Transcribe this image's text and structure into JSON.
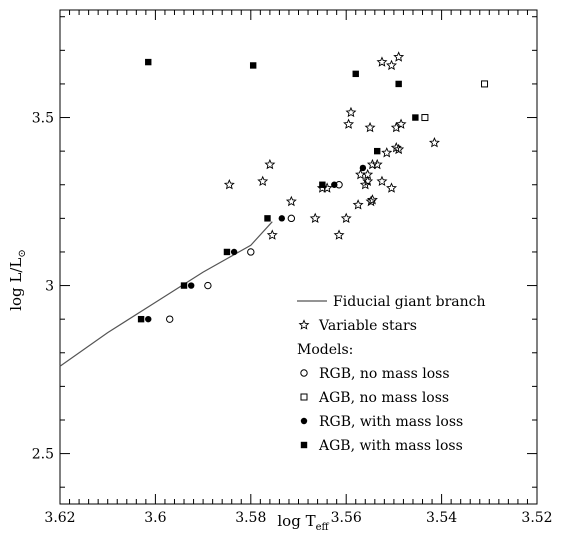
{
  "chart_data": {
    "type": "scatter",
    "x_axis": {
      "label_main": "log T",
      "label_sub": "eff",
      "range": [
        3.62,
        3.52
      ],
      "reversed": true,
      "ticks": [
        3.62,
        3.6,
        3.58,
        3.56,
        3.54,
        3.52
      ],
      "tick_labels": [
        "3.62",
        "3.6",
        "3.58",
        "3.56",
        "3.54",
        "3.52"
      ]
    },
    "y_axis": {
      "label_main": "log L/L",
      "label_sub": "⊙",
      "range": [
        2.35,
        3.82
      ],
      "ticks": [
        2.5,
        3.0,
        3.5
      ],
      "tick_labels": [
        "2.5",
        "3",
        "3.5"
      ]
    },
    "grid": false,
    "legend_placement": "bottom-right",
    "legend": {
      "items": [
        {
          "marker": "line",
          "label": "Fiducial giant branch"
        },
        {
          "marker": "star",
          "label": "Variable stars"
        },
        {
          "marker": "none",
          "label": "Models:"
        },
        {
          "marker": "open-circle",
          "label": "RGB, no mass loss"
        },
        {
          "marker": "open-square",
          "label": "AGB, no mass loss"
        },
        {
          "marker": "filled-circle",
          "label": "RGB, with mass loss"
        },
        {
          "marker": "filled-square",
          "label": "AGB, with mass loss"
        }
      ]
    },
    "series": [
      {
        "name": "Fiducial giant branch",
        "style": "line",
        "color": "#555555",
        "points": [
          [
            3.62,
            2.76
          ],
          [
            3.61,
            2.86
          ],
          [
            3.6,
            2.95
          ],
          [
            3.59,
            3.04
          ],
          [
            3.58,
            3.12
          ],
          [
            3.5755,
            3.19
          ]
        ]
      },
      {
        "name": "Variable stars",
        "style": "star",
        "points": [
          [
            3.5845,
            3.3
          ],
          [
            3.5775,
            3.31
          ],
          [
            3.576,
            3.36
          ],
          [
            3.5755,
            3.15
          ],
          [
            3.5715,
            3.25
          ],
          [
            3.5665,
            3.2
          ],
          [
            3.565,
            3.29
          ],
          [
            3.564,
            3.29
          ],
          [
            3.5615,
            3.15
          ],
          [
            3.56,
            3.2
          ],
          [
            3.5595,
            3.48
          ],
          [
            3.559,
            3.515
          ],
          [
            3.5575,
            3.24
          ],
          [
            3.557,
            3.33
          ],
          [
            3.556,
            3.3
          ],
          [
            3.5555,
            3.31
          ],
          [
            3.555,
            3.47
          ],
          [
            3.5548,
            3.25
          ],
          [
            3.5545,
            3.255
          ],
          [
            3.5535,
            3.36
          ],
          [
            3.5525,
            3.31
          ],
          [
            3.5515,
            3.395
          ],
          [
            3.5505,
            3.29
          ],
          [
            3.5495,
            3.41
          ],
          [
            3.549,
            3.405
          ],
          [
            3.5525,
            3.665
          ],
          [
            3.5505,
            3.655
          ],
          [
            3.549,
            3.68
          ],
          [
            3.5495,
            3.47
          ],
          [
            3.5485,
            3.48
          ],
          [
            3.5415,
            3.425
          ],
          [
            3.5545,
            3.36
          ],
          [
            3.5555,
            3.33
          ]
        ]
      },
      {
        "name": "RGB, no mass loss",
        "style": "open-circle",
        "points": [
          [
            3.597,
            2.9
          ],
          [
            3.589,
            3.0
          ],
          [
            3.58,
            3.1
          ],
          [
            3.5715,
            3.2
          ],
          [
            3.5615,
            3.3
          ]
        ]
      },
      {
        "name": "AGB, no mass loss",
        "style": "open-square",
        "points": [
          [
            3.531,
            3.6
          ],
          [
            3.5435,
            3.5
          ]
        ]
      },
      {
        "name": "RGB, with mass loss",
        "style": "filled-circle",
        "points": [
          [
            3.6015,
            2.9
          ],
          [
            3.5925,
            3.0
          ],
          [
            3.5835,
            3.1
          ],
          [
            3.5735,
            3.2
          ],
          [
            3.5625,
            3.3
          ],
          [
            3.5565,
            3.35
          ]
        ]
      },
      {
        "name": "AGB, with mass loss",
        "style": "filled-square",
        "points": [
          [
            3.603,
            2.9
          ],
          [
            3.594,
            3.0
          ],
          [
            3.585,
            3.1
          ],
          [
            3.5765,
            3.2
          ],
          [
            3.565,
            3.3
          ],
          [
            3.5535,
            3.4
          ],
          [
            3.5455,
            3.5
          ],
          [
            3.549,
            3.6
          ],
          [
            3.558,
            3.63
          ],
          [
            3.5795,
            3.655
          ],
          [
            3.6015,
            3.665
          ]
        ]
      }
    ]
  }
}
